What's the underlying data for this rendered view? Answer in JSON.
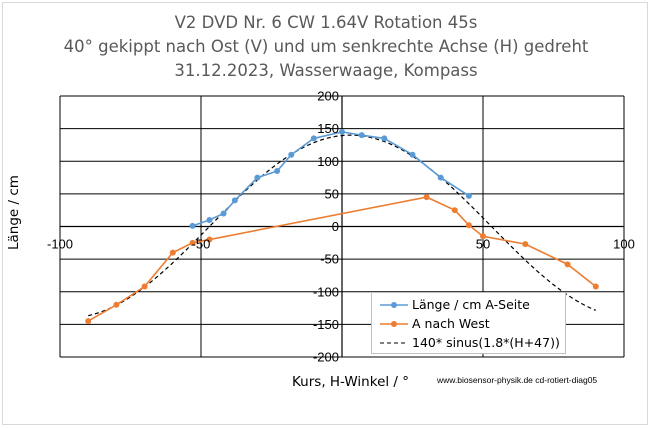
{
  "chart_data": {
    "type": "line",
    "title": [
      "V2 DVD Nr. 6 CW 1.64V Rotation 45s",
      "40° gekippt nach Ost (V) und um senkrechte Achse (H) gedreht",
      "31.12.2023, Wasserwaage, Kompass"
    ],
    "xlabel": "Kurs, H-Winkel / °",
    "ylabel": "Länge / cm",
    "xlim": [
      -100,
      100
    ],
    "ylim": [
      -200,
      200
    ],
    "x_ticks": [
      -100,
      -50,
      0,
      50,
      100
    ],
    "y_ticks": [
      200,
      150,
      100,
      50,
      0,
      -50,
      -100,
      -150,
      -200
    ],
    "grid": true,
    "legend_position": "bottom-right",
    "series": [
      {
        "name": "Länge / cm A-Seite",
        "color": "#5b9bd5",
        "marker": "circle",
        "x": [
          -53,
          -47,
          -42,
          -38,
          -30,
          -23,
          -18,
          -10,
          0,
          7,
          15,
          25,
          35,
          45
        ],
        "y": [
          1,
          10,
          20,
          40,
          75,
          85,
          110,
          135,
          145,
          140,
          135,
          110,
          75,
          47
        ]
      },
      {
        "name": "A nach West",
        "color": "#ed7d31",
        "marker": "circle",
        "x": [
          -90,
          -80,
          -70,
          -60,
          -53,
          -47,
          30,
          40,
          45,
          50,
          65,
          80,
          90
        ],
        "y": [
          -145,
          -120,
          -92,
          -40,
          -25,
          -20,
          45,
          25,
          2,
          -15,
          -27,
          -58,
          -92
        ]
      },
      {
        "name": "140* sinus(1.8*(H+47))",
        "color": "#000000",
        "style": "dashed",
        "function": "140*sin(1.8*(H+47))",
        "x_range": [
          -90,
          90
        ]
      }
    ]
  },
  "footer": {
    "credit": "www.biosensor-physik.de  cd-rotiert-diag05"
  }
}
